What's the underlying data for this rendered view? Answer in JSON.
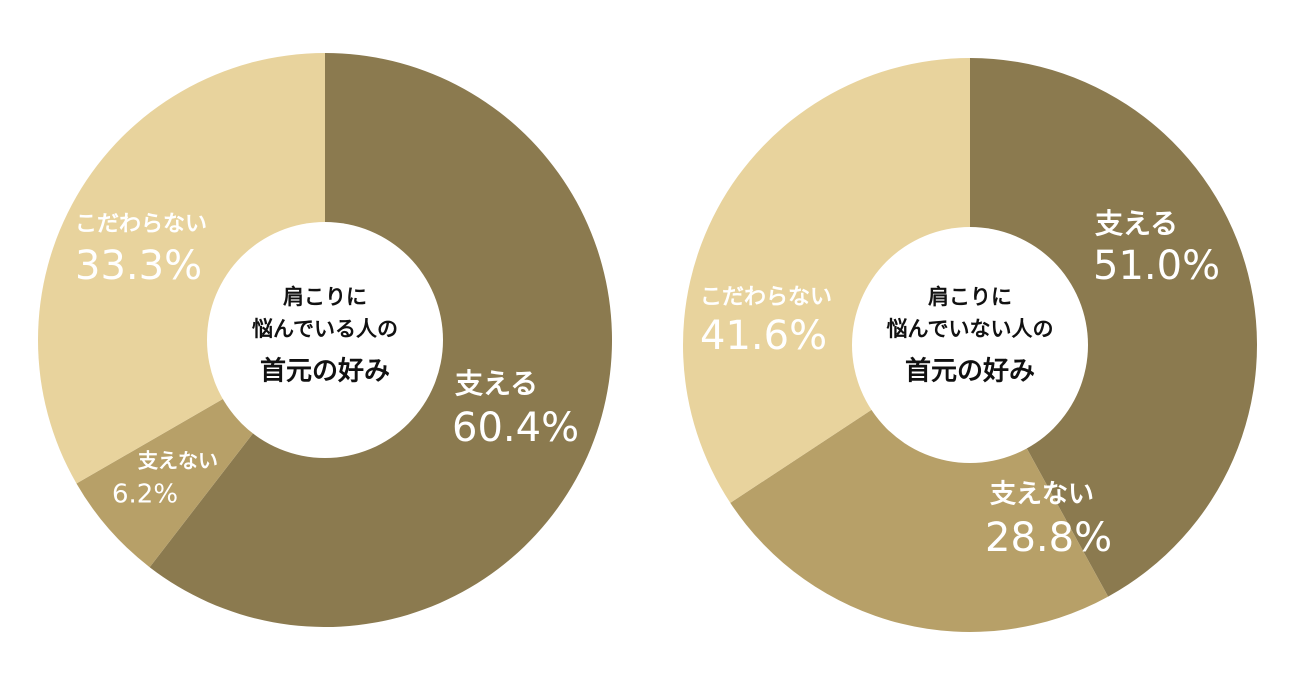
{
  "chart_data": [
    {
      "type": "donut",
      "title": [
        "肩こりに",
        "悩んでいる人の",
        "首元の好み"
      ],
      "categories": [
        "支える",
        "支えない",
        "こだわらない"
      ],
      "values": [
        60.4,
        6.2,
        33.3
      ],
      "value_labels": [
        "60.4%",
        "6.2%",
        "33.3%"
      ],
      "colors": [
        "#8b7a4f",
        "#b7a068",
        "#e8d39d"
      ]
    },
    {
      "type": "donut",
      "title": [
        "肩こりに",
        "悩んでいない人の",
        "首元の好み"
      ],
      "categories": [
        "支える",
        "支えない",
        "こだわらない"
      ],
      "values": [
        51.0,
        28.8,
        41.6
      ],
      "value_labels": [
        "51.0%",
        "28.8%",
        "41.6%"
      ],
      "colors": [
        "#8b7a4f",
        "#b7a068",
        "#e8d39d"
      ]
    }
  ]
}
